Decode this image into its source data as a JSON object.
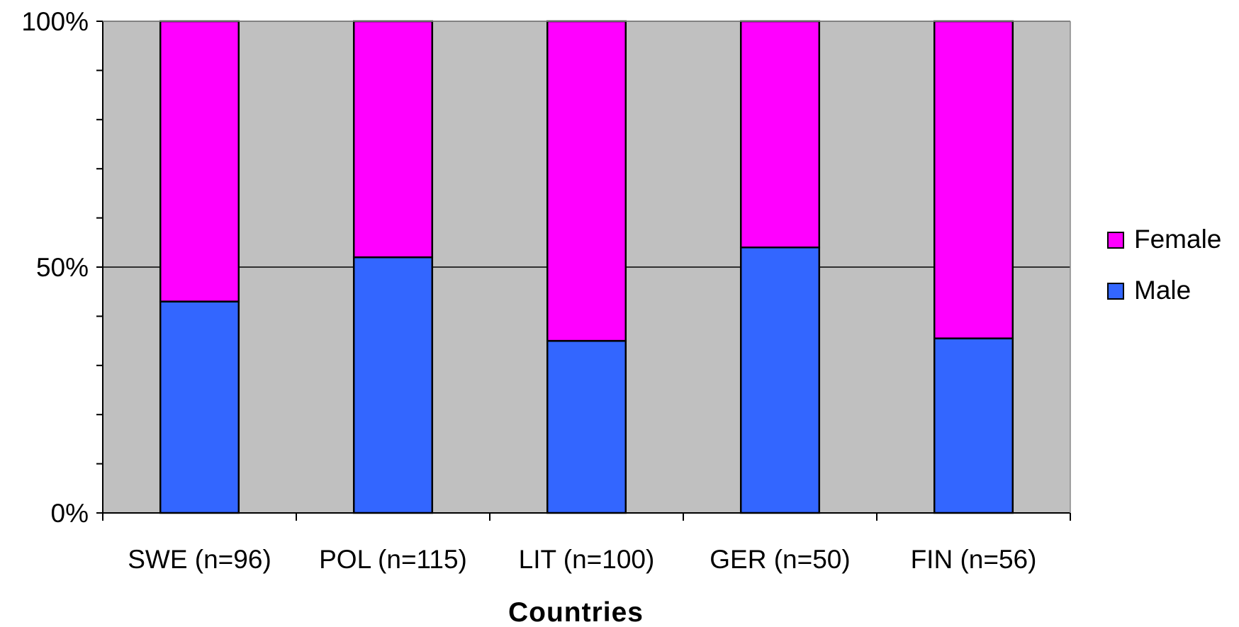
{
  "chart_data": {
    "type": "bar",
    "stacked": true,
    "normalized": true,
    "categories": [
      "SWE (n=96)",
      "POL (n=115)",
      "LIT (n=100)",
      "GER (n=50)",
      "FIN (n=56)"
    ],
    "series": [
      {
        "name": "Male",
        "color": "#3366ff",
        "values": [
          43,
          52,
          35,
          54,
          35.5
        ]
      },
      {
        "name": "Female",
        "color": "#ff00ff",
        "values": [
          57,
          48,
          65,
          46,
          64.5
        ]
      }
    ],
    "xlabel": "Countries",
    "ylabel": "",
    "ylim": [
      0,
      100
    ],
    "yticks": [
      "0%",
      "50%",
      "100%"
    ],
    "ytick_values": [
      0,
      50,
      100
    ],
    "plot_background": "#c0c0c0",
    "grid": true,
    "legend_position": "right",
    "legend_order": [
      "Female",
      "Male"
    ]
  }
}
